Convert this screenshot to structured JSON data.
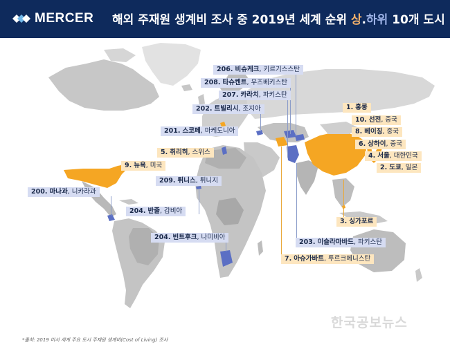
{
  "header": {
    "logo_text": "MERCER",
    "title_prefix": "해외 주재원 생계비 조사 중 2019년 세계 순위 ",
    "title_high": "상",
    "title_dot": ".",
    "title_low": "하위",
    "title_suffix": " 10개 도시"
  },
  "colors": {
    "header_bg": "#0e2a5c",
    "high_countries": "#f5a623",
    "low_countries": "#5b6fc4",
    "high_label_bg": "#fde6bf",
    "low_label_bg": "#d6dcf2"
  },
  "top_cities": [
    {
      "rank": "1.",
      "name": "홍콩",
      "country": ""
    },
    {
      "rank": "2.",
      "name": "도쿄",
      "country": "일본"
    },
    {
      "rank": "3.",
      "name": "싱가포르",
      "country": ""
    },
    {
      "rank": "4.",
      "name": "서울",
      "country": "대한민국"
    },
    {
      "rank": "5.",
      "name": "취리히",
      "country": "스위스"
    },
    {
      "rank": "6.",
      "name": "상하이",
      "country": "중국"
    },
    {
      "rank": "7.",
      "name": "아슈가바트",
      "country": "투르크메니스탄"
    },
    {
      "rank": "8.",
      "name": "베이징",
      "country": "중국"
    },
    {
      "rank": "9.",
      "name": "뉴욕",
      "country": "미국"
    },
    {
      "rank": "10.",
      "name": "선전",
      "country": "중국"
    }
  ],
  "bottom_cities": [
    {
      "rank": "200.",
      "name": "마나과",
      "country": "니카라과"
    },
    {
      "rank": "201.",
      "name": "스코페",
      "country": "마케도니아"
    },
    {
      "rank": "202.",
      "name": "트빌리시",
      "country": "조지아"
    },
    {
      "rank": "203.",
      "name": "이슬라마바드",
      "country": "파키스탄"
    },
    {
      "rank": "204.",
      "name": "반줄",
      "country": "감비아"
    },
    {
      "rank": "204.",
      "name": "빈트후크",
      "country": "나미비아"
    },
    {
      "rank": "206.",
      "name": "비슈케크",
      "country": "키르기스스탄"
    },
    {
      "rank": "207.",
      "name": "카라치",
      "country": "파키스탄"
    },
    {
      "rank": "208.",
      "name": "타슈켄트",
      "country": "우즈베키스탄"
    },
    {
      "rank": "209.",
      "name": "튀니스",
      "country": "튀니지"
    }
  ],
  "source": "*출처: 2019 머서 세계 주요 도시 주재원 생계비(Cost of Living) 조사",
  "watermark": "한국공보뉴스"
}
